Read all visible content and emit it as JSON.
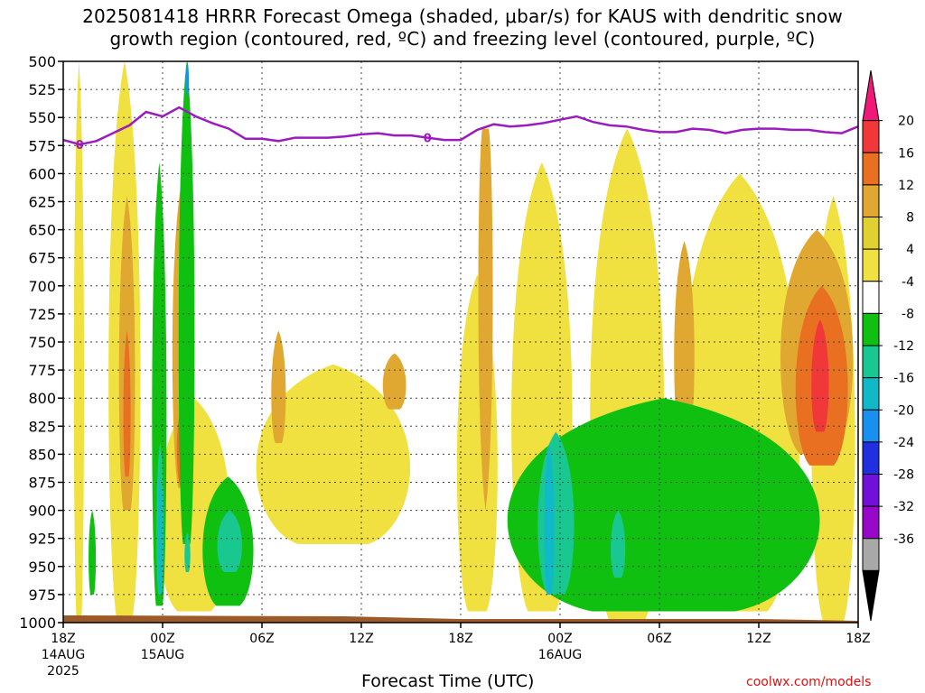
{
  "title": {
    "line1": "2025081418 HRRR Forecast Omega (shaded, μbar/s) for KAUS with dendritic snow",
    "line2": "growth region (contoured, red, ºC) and freezing level (contoured, purple, ºC)"
  },
  "chart_data": {
    "type": "heatmap",
    "title": "2025081418 HRRR Forecast Omega (shaded, μbar/s) for KAUS with dendritic snow growth region (contoured, red, ºC) and freezing level (contoured, purple, ºC)",
    "xlabel": "Forecast Time (UTC)",
    "ylabel": "",
    "y_axis": {
      "ticks": [
        500,
        525,
        550,
        575,
        600,
        625,
        650,
        675,
        700,
        725,
        750,
        775,
        800,
        825,
        850,
        875,
        900,
        925,
        950,
        975,
        1000
      ],
      "range": [
        1000,
        500
      ],
      "inverted": true
    },
    "x_axis": {
      "range_hours": [
        0,
        48
      ],
      "ticks": [
        {
          "hour": 0,
          "label": "18Z",
          "sub": "14AUG",
          "sub2": "2025"
        },
        {
          "hour": 6,
          "label": "00Z",
          "sub": "15AUG",
          "sub2": ""
        },
        {
          "hour": 12,
          "label": "06Z",
          "sub": "",
          "sub2": ""
        },
        {
          "hour": 18,
          "label": "12Z",
          "sub": "",
          "sub2": ""
        },
        {
          "hour": 24,
          "label": "18Z",
          "sub": "",
          "sub2": ""
        },
        {
          "hour": 30,
          "label": "00Z",
          "sub": "16AUG",
          "sub2": ""
        },
        {
          "hour": 36,
          "label": "06Z",
          "sub": "",
          "sub2": ""
        },
        {
          "hour": 42,
          "label": "12Z",
          "sub": "",
          "sub2": ""
        },
        {
          "hour": 48,
          "label": "18Z",
          "sub": "",
          "sub2": ""
        }
      ]
    },
    "grid": true,
    "colorbar": {
      "labels": [
        "20",
        "16",
        "12",
        "8",
        "4",
        "-4",
        "-8",
        "-12",
        "-16",
        "-20",
        "-24",
        "-28",
        "-32",
        "-36"
      ],
      "colors": [
        "#f01878",
        "#f03838",
        "#e87020",
        "#e0a830",
        "#e0d030",
        "#f0e040",
        "#ffffff",
        "#10c010",
        "#18c890",
        "#10b8c8",
        "#1890f0",
        "#2030e0",
        "#7010d8",
        "#9808c8",
        "#a8a8a8",
        "#000000"
      ]
    },
    "freezing_level": {
      "color": "#9c1bbf",
      "label": "0",
      "hours": [
        0,
        1,
        2,
        3,
        4,
        5,
        6,
        7,
        8,
        9,
        10,
        11,
        12,
        13,
        14,
        15,
        16,
        17,
        18,
        19,
        20,
        21,
        22,
        23,
        24,
        25,
        26,
        27,
        28,
        29,
        30,
        31,
        32,
        33,
        34,
        35,
        36,
        37,
        38,
        39,
        40,
        41,
        42,
        43,
        44,
        45,
        46,
        47,
        48
      ],
      "pressure": [
        570,
        574,
        571,
        564,
        557,
        545,
        549,
        541,
        549,
        555,
        560,
        569,
        569,
        571,
        568,
        568,
        568,
        567,
        565,
        564,
        566,
        566,
        568,
        570,
        570,
        561,
        556,
        558,
        557,
        555,
        552,
        549,
        554,
        557,
        558,
        561,
        563,
        563,
        560,
        561,
        564,
        561,
        560,
        560,
        561,
        561,
        563,
        564,
        558
      ]
    },
    "omega_shading": [
      {
        "level": "4",
        "color": "#f0e040",
        "hours": [
          [
            0.6,
            1.3
          ],
          [
            2.6,
            4.8
          ],
          [
            5.4,
            10.4
          ],
          [
            11.0,
            21.6
          ],
          [
            23.6,
            26.4
          ],
          [
            26.8,
            31.0
          ],
          [
            31.5,
            36.6
          ],
          [
            36.7,
            45.0
          ],
          [
            45.0,
            48.0
          ]
        ]
      },
      {
        "level": "8",
        "color": "#e0a830",
        "hours": [
          [
            3.3,
            4.4
          ],
          [
            6.5,
            8.0
          ],
          [
            12.5,
            13.5
          ],
          [
            19.2,
            20.8
          ],
          [
            25.0,
            26.0
          ],
          [
            36.8,
            38.2
          ],
          [
            43.0,
            48.0
          ]
        ]
      },
      {
        "level": "12",
        "color": "#e87020",
        "hours": [
          [
            3.6,
            4.1
          ],
          [
            6.8,
            7.8
          ],
          [
            44.0,
            47.6
          ]
        ]
      },
      {
        "level": "16",
        "color": "#f03838",
        "hours": [
          [
            7.0,
            7.7
          ],
          [
            45.1,
            46.3
          ]
        ]
      },
      {
        "level": "20",
        "color": "#f01878",
        "hours": [
          [
            7.1,
            7.7
          ]
        ]
      },
      {
        "level": "-4",
        "color": "#10c010",
        "hours": [
          [
            1.5,
            2.0
          ],
          [
            5.3,
            6.3
          ],
          [
            6.9,
            8.0
          ],
          [
            8.2,
            11.7
          ],
          [
            25.5,
            47.0
          ]
        ]
      },
      {
        "level": "-8",
        "color": "#18c890",
        "hours": [
          [
            5.6,
            6.1
          ],
          [
            7.3,
            7.7
          ],
          [
            9.2,
            10.9
          ],
          [
            28.5,
            31.0
          ],
          [
            33.0,
            34.0
          ]
        ]
      },
      {
        "level": "-12",
        "color": "#10b8c8",
        "hours": [
          [
            5.7,
            6.0
          ],
          [
            29.0,
            29.7
          ]
        ]
      },
      {
        "level": "-16",
        "color": "#1890f0",
        "hours": [
          [
            7.4,
            7.6
          ]
        ]
      }
    ],
    "surface_color": "#9c5a28"
  },
  "axis_labels": {
    "xtitle": "Forecast Time (UTC)",
    "credit": "coolwx.com/models"
  }
}
